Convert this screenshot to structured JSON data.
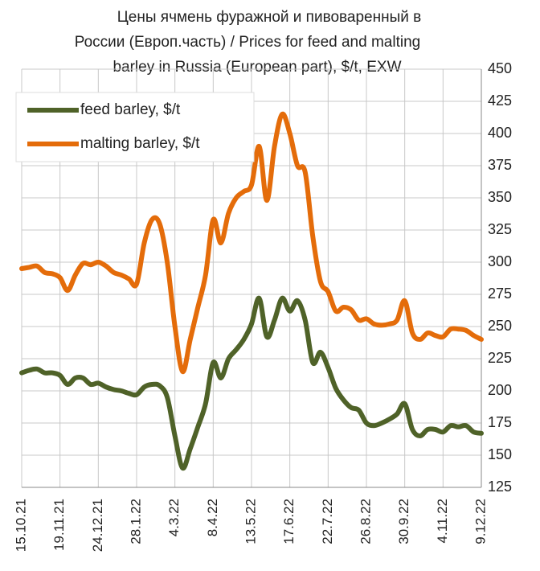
{
  "chart_data": {
    "type": "line",
    "title": [
      "Цены ячмень фуражной и пивоваренный в",
      "России (Европ.часть) / Prices for feed and malting",
      "barley in Russia (European part), $/t, EXW"
    ],
    "categories": [
      "15.10.21",
      null,
      null,
      null,
      null,
      "19.11.21",
      null,
      null,
      null,
      null,
      "24.12.21",
      null,
      null,
      null,
      null,
      "28.1.22",
      null,
      null,
      null,
      null,
      "4.3.22",
      null,
      null,
      null,
      null,
      "8.4.22",
      null,
      null,
      null,
      null,
      "13.5.22",
      null,
      null,
      null,
      null,
      "17.6.22",
      null,
      null,
      null,
      null,
      "22.7.22",
      null,
      null,
      null,
      null,
      "26.8.22",
      null,
      null,
      null,
      null,
      "30.9.22",
      null,
      null,
      null,
      null,
      "4.11.22",
      null,
      null,
      null,
      null,
      "9.12.22"
    ],
    "series": [
      {
        "name": "feed barley, $/t",
        "color": "#4f6228",
        "values": [
          214,
          216,
          217,
          214,
          214,
          212,
          205,
          210,
          210,
          205,
          206,
          203,
          201,
          200,
          198,
          197,
          203,
          205,
          204,
          195,
          165,
          140,
          155,
          172,
          190,
          222,
          210,
          225,
          232,
          240,
          252,
          272,
          242,
          255,
          272,
          262,
          270,
          255,
          222,
          230,
          218,
          202,
          193,
          187,
          185,
          175,
          173,
          175,
          178,
          182,
          190,
          170,
          165,
          170,
          170,
          168,
          173,
          172,
          173,
          168,
          167
        ]
      },
      {
        "name": "malting barley, $/t",
        "color": "#e46c0a",
        "values": [
          295,
          296,
          297,
          292,
          291,
          288,
          278,
          290,
          299,
          298,
          300,
          297,
          292,
          290,
          287,
          283,
          315,
          333,
          330,
          300,
          250,
          215,
          240,
          265,
          290,
          333,
          315,
          338,
          350,
          355,
          360,
          390,
          348,
          390,
          415,
          400,
          375,
          370,
          320,
          285,
          277,
          262,
          265,
          263,
          255,
          256,
          252,
          251,
          252,
          255,
          270,
          245,
          240,
          245,
          243,
          242,
          248,
          248,
          247,
          243,
          240
        ]
      }
    ],
    "ylim": [
      125,
      450
    ],
    "yticks": [
      125,
      150,
      175,
      200,
      225,
      250,
      275,
      300,
      325,
      350,
      375,
      400,
      425,
      450
    ],
    "grid": true,
    "legend": "upper left"
  }
}
